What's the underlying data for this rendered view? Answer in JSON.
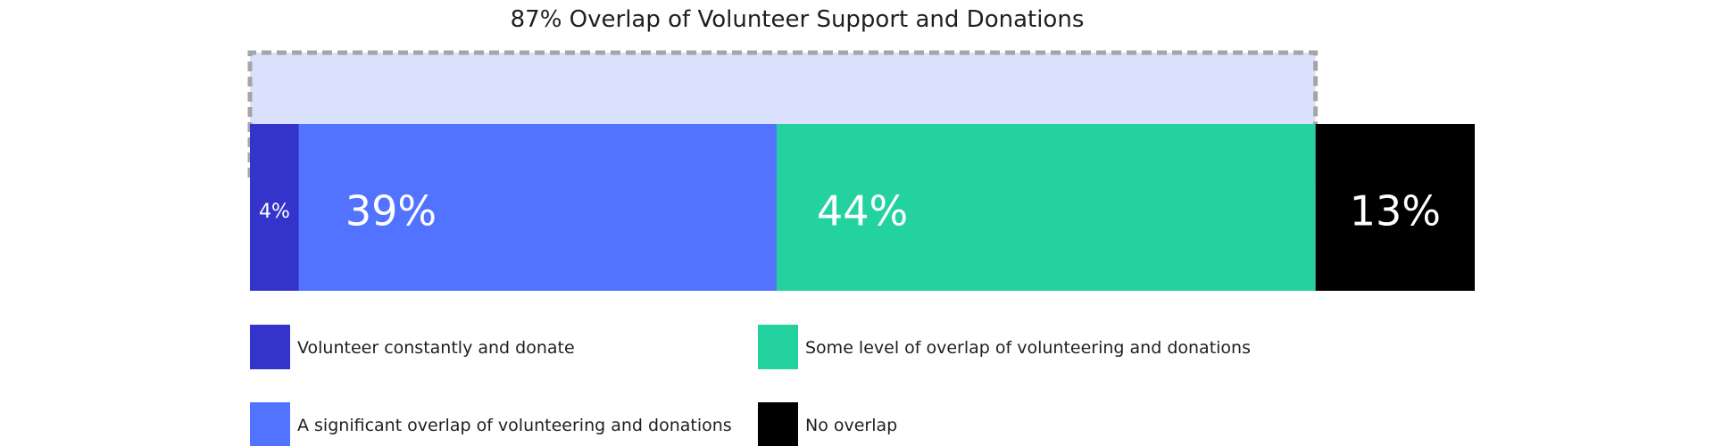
{
  "chart_data": {
    "type": "bar",
    "orientation": "horizontal-stacked",
    "title": "87% Overlap of Volunteer Support and Donations",
    "categories": [
      ""
    ],
    "series": [
      {
        "name": "Volunteer constantly and donate",
        "values": [
          4
        ],
        "label": "4%",
        "color": "#3433CC"
      },
      {
        "name": "A significant overlap of volunteering and donations",
        "values": [
          39
        ],
        "label": "39%",
        "color": "#5273FF"
      },
      {
        "name": "Some level of overlap of volunteering and donations",
        "values": [
          44
        ],
        "label": "44%",
        "color": "#24D2A0"
      },
      {
        "name": "No overlap",
        "values": [
          13
        ],
        "label": "13%",
        "color": "#000000"
      }
    ],
    "bracket": {
      "covers_series": [
        0,
        1,
        2
      ],
      "fill": "#DAE1FD",
      "stroke": "#A5A5A5"
    },
    "xlim": [
      0,
      100
    ],
    "grid": false,
    "legend": "bottom, two columns"
  }
}
